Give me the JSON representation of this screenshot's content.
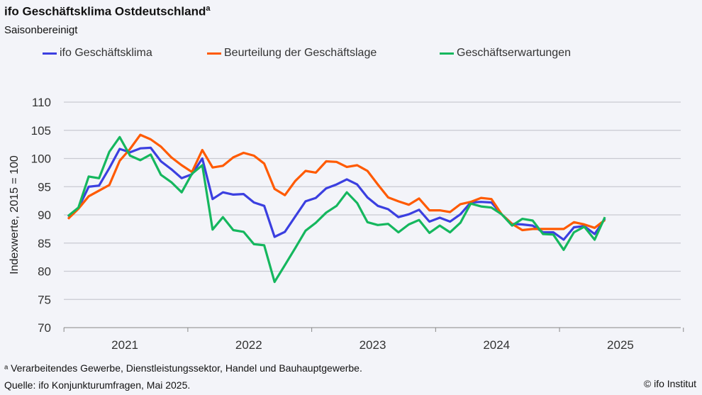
{
  "header": {
    "title": "ifo Geschäftsklima Ostdeutschland",
    "title_sup": "a",
    "subtitle": "Saisonbereinigt"
  },
  "footer": {
    "note": "ᵃ Verarbeitendes Gewerbe, Dienstleistungssektor, Handel und Bauhauptgewerbe.",
    "source": "Quelle: ifo Konjunkturumfragen, Mai 2025.",
    "copyright": "© ifo Institut"
  },
  "chart_data": {
    "type": "line",
    "title": "ifo Geschäftsklima Ostdeutschland",
    "subtitle": "Saisonbereinigt",
    "ylabel": "Indexwerte, 2015 = 100",
    "xlabel": "",
    "ylim": [
      70,
      110
    ],
    "yticks": [
      "70",
      "75",
      "80",
      "85",
      "90",
      "95",
      "100",
      "105",
      "110"
    ],
    "xticks": [
      "2021",
      "2022",
      "2023",
      "2024",
      "2025"
    ],
    "grid": true,
    "legend": "top",
    "x_start": "2021-01",
    "x_end": "2025-05",
    "series": [
      {
        "name": "ifo Geschäftsklima",
        "color": "#3b3fe0",
        "values": [
          89.7,
          91.2,
          95.0,
          95.2,
          98.3,
          101.7,
          101.1,
          101.8,
          101.9,
          99.5,
          98.1,
          96.5,
          97.2,
          100.0,
          92.8,
          94.0,
          93.6,
          93.7,
          92.2,
          91.6,
          86.1,
          87.0,
          89.7,
          92.4,
          93.0,
          94.7,
          95.4,
          96.3,
          95.4,
          93.1,
          91.6,
          91.0,
          89.6,
          90.1,
          90.9,
          88.8,
          89.5,
          88.8,
          90.1,
          92.2,
          92.3,
          92.2,
          90.1,
          88.4,
          88.3,
          88.1,
          86.9,
          86.9,
          85.6,
          87.8,
          88.0,
          86.6,
          89.3
        ]
      },
      {
        "name": "Beurteilung der Geschäftslage",
        "color": "#ff5a00",
        "values": [
          89.3,
          91.1,
          93.3,
          94.3,
          95.3,
          99.6,
          101.7,
          104.2,
          103.4,
          102.1,
          100.2,
          98.8,
          97.6,
          101.5,
          98.4,
          98.7,
          100.2,
          101.0,
          100.5,
          99.1,
          94.6,
          93.5,
          96.0,
          97.8,
          97.5,
          99.5,
          99.4,
          98.5,
          98.8,
          97.8,
          95.4,
          93.1,
          92.4,
          91.8,
          92.9,
          90.8,
          90.8,
          90.5,
          91.9,
          92.3,
          93.0,
          92.8,
          90.1,
          88.4,
          87.3,
          87.5,
          87.5,
          87.5,
          87.5,
          88.7,
          88.3,
          87.7,
          89.1
        ]
      },
      {
        "name": "Geschäftserwartungen",
        "color": "#15b75e",
        "values": [
          89.8,
          91.3,
          96.8,
          96.5,
          101.2,
          103.8,
          100.5,
          99.7,
          100.7,
          97.1,
          95.8,
          94.0,
          97.3,
          98.8,
          87.4,
          89.6,
          87.3,
          87.0,
          84.8,
          84.6,
          78.1,
          81.1,
          84.1,
          87.2,
          88.6,
          90.4,
          91.6,
          94.0,
          92.1,
          88.7,
          88.2,
          88.4,
          86.9,
          88.3,
          89.1,
          86.8,
          88.1,
          86.9,
          88.6,
          92.0,
          91.5,
          91.3,
          90.1,
          88.1,
          89.3,
          89.0,
          86.6,
          86.5,
          83.8,
          86.9,
          87.9,
          85.6,
          89.6
        ]
      }
    ]
  }
}
